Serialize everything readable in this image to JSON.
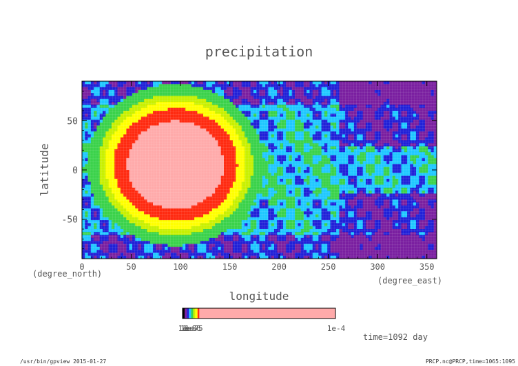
{
  "chart_data": {
    "type": "heatmap",
    "title": "precipitation",
    "xlabel": "longitude",
    "ylabel": "latitude",
    "x_unit": "(degree_east)",
    "y_unit": "(degree_north)",
    "xlim": [
      0,
      360
    ],
    "ylim": [
      -90,
      90
    ],
    "x_ticks": [
      "0",
      "50",
      "100",
      "150",
      "200",
      "250",
      "300",
      "350"
    ],
    "y_ticks": [
      "50",
      "0",
      "-50"
    ],
    "colorbar": {
      "labels": [
        "1e-8",
        "1e-7",
        "1e-6",
        "1e-5",
        "1e-4"
      ],
      "min_label": "1e-8",
      "max_label": "1e-4",
      "colors": [
        "#000000",
        "#7a1fa0",
        "#2020d8",
        "#1fc8ff",
        "#3ad24a",
        "#c8f000",
        "#ffff00",
        "#ff2a10",
        "#ffaaaa"
      ]
    },
    "levels": [
      {
        "name": "purple",
        "color": "#7a1fa0"
      },
      {
        "name": "blue",
        "color": "#2020d8"
      },
      {
        "name": "cyan",
        "color": "#1fc8ff"
      },
      {
        "name": "green",
        "color": "#3ad24a"
      },
      {
        "name": "yellow-green",
        "color": "#c8f000"
      },
      {
        "name": "yellow",
        "color": "#ffff00"
      },
      {
        "name": "red",
        "color": "#ff2a10"
      },
      {
        "name": "pink",
        "color": "#ffaaaa"
      }
    ],
    "hotspot_center": {
      "lon": 95,
      "lat": 5
    }
  },
  "annotations": {
    "time": "time=1092 day",
    "footer_left": "/usr/bin/gpview  2015-01-27",
    "footer_right": "PRCP.nc@PRCP,time=1065:1095"
  }
}
